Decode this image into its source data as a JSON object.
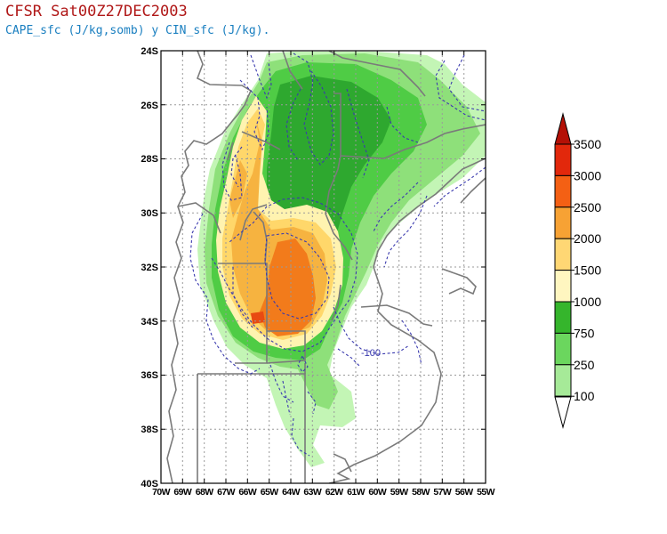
{
  "header": {
    "title": "CFSR Sat00Z27DEC2003",
    "subtitle": "CAPE_sfc (J/kg,somb) y CIN_sfc (J/kg)."
  },
  "map": {
    "lon_range": [
      -70,
      -55
    ],
    "lat_range": [
      -40,
      -24
    ],
    "lat_labels": [
      "24S",
      "26S",
      "28S",
      "30S",
      "32S",
      "34S",
      "36S",
      "38S",
      "40S"
    ],
    "lon_labels": [
      "70W",
      "69W",
      "68W",
      "67W",
      "66W",
      "65W",
      "64W",
      "63W",
      "62W",
      "61W",
      "60W",
      "59W",
      "58W",
      "57W",
      "56W",
      "55W"
    ],
    "contour_label": "-100",
    "fill_colors": {
      "c100": "#c3f5b5",
      "c250": "#8ee07a",
      "c750": "#4fcc45",
      "c1000": "#2ea82f",
      "c1500": "#fff3b0",
      "c2000": "#ffd76a",
      "c2500": "#f6b340",
      "c3000": "#f27b1b",
      "c3500": "#e84a12"
    },
    "cin_color": "#3a3aae",
    "border_color": "#707070"
  },
  "colorbar": {
    "labels": [
      "3500",
      "3000",
      "2500",
      "2000",
      "1500",
      "1000",
      "750",
      "250",
      "100"
    ],
    "colors": [
      "#e2280c",
      "#f46014",
      "#f7a234",
      "#ffd774",
      "#fff6c0",
      "#35b52c",
      "#6bd65e",
      "#a6ea98",
      "#d2f8c8"
    ],
    "top_arrow_color": "#b41006",
    "bottom_arrow_color": "#ffffff"
  }
}
